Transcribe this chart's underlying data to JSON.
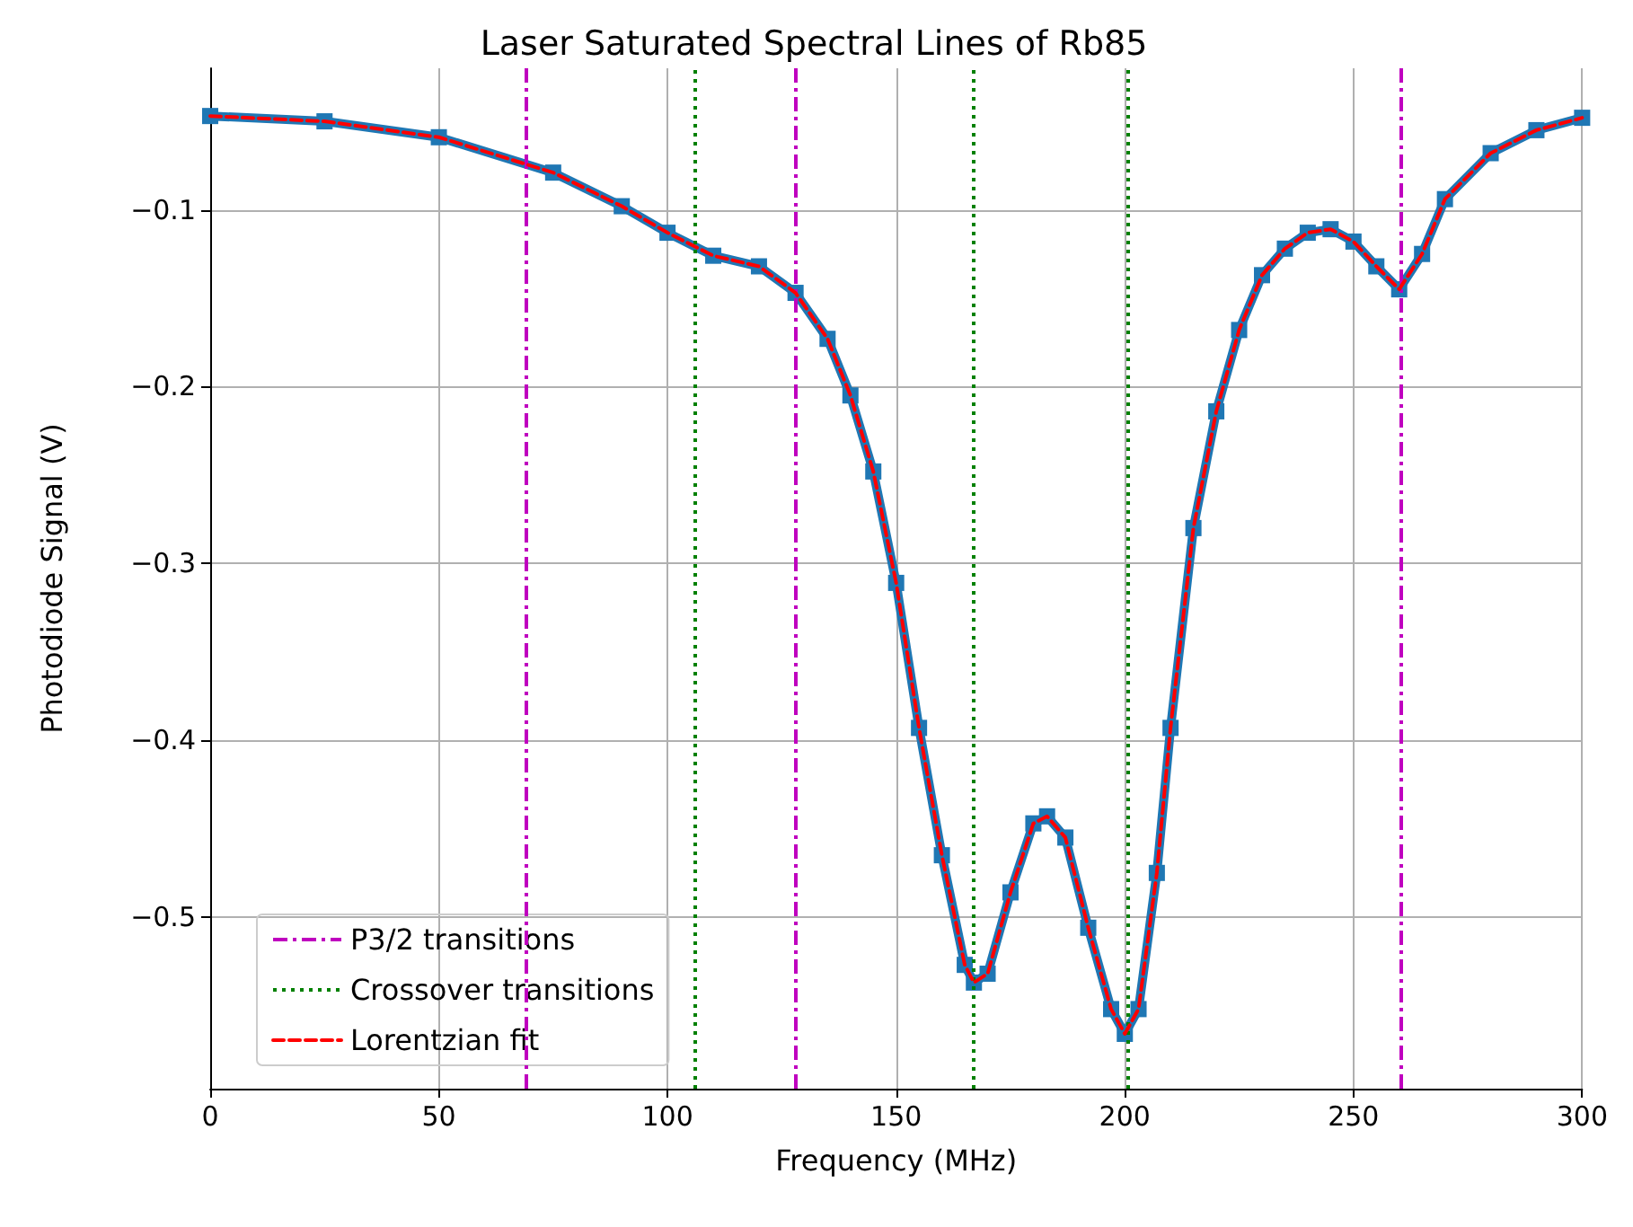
{
  "chart_data": {
    "type": "line",
    "title": "Laser Saturated Spectral Lines of Rb85",
    "xlabel": "Frequency (MHz)",
    "ylabel": "Photodiode Signal (V)",
    "xlim": [
      0,
      300
    ],
    "xticks": [
      0,
      50,
      100,
      150,
      200,
      250,
      300
    ],
    "ylim": [
      -0.597,
      -0.02
    ],
    "yticks": [
      {
        "value": -0.5,
        "label": "−0.5"
      },
      {
        "value": -0.4,
        "label": "−0.4"
      },
      {
        "value": -0.3,
        "label": "−0.3"
      },
      {
        "value": -0.2,
        "label": "−0.2"
      },
      {
        "value": -0.1,
        "label": "−0.1"
      }
    ],
    "grid": true,
    "legend": "bottom left",
    "x": [
      0,
      25,
      50,
      75,
      90,
      100,
      110,
      120,
      128,
      135,
      140,
      145,
      150,
      155,
      160,
      165,
      167,
      170,
      175,
      180,
      183,
      187,
      192,
      197,
      200,
      203,
      207,
      210,
      215,
      220,
      225,
      230,
      235,
      240,
      245,
      250,
      255,
      260,
      265,
      270,
      280,
      290,
      300
    ],
    "series": [
      {
        "color": "#1f77b4",
        "marker": "square",
        "line_style": "solid",
        "values": [
          -0.047,
          -0.05,
          -0.059,
          -0.079,
          -0.098,
          -0.113,
          -0.126,
          -0.132,
          -0.147,
          -0.173,
          -0.205,
          -0.248,
          -0.311,
          -0.393,
          -0.465,
          -0.527,
          -0.537,
          -0.532,
          -0.486,
          -0.447,
          -0.443,
          -0.455,
          -0.506,
          -0.552,
          -0.566,
          -0.552,
          -0.475,
          -0.393,
          -0.28,
          -0.214,
          -0.168,
          -0.137,
          -0.122,
          -0.113,
          -0.111,
          -0.118,
          -0.132,
          -0.145,
          -0.125,
          -0.094,
          -0.068,
          -0.055,
          -0.048
        ]
      },
      {
        "name": "Lorentzian fit",
        "color": "#ff0000",
        "marker": "none",
        "line_style": "dashed",
        "values": [
          -0.047,
          -0.05,
          -0.059,
          -0.079,
          -0.098,
          -0.113,
          -0.126,
          -0.132,
          -0.147,
          -0.173,
          -0.205,
          -0.248,
          -0.311,
          -0.393,
          -0.465,
          -0.527,
          -0.537,
          -0.532,
          -0.486,
          -0.447,
          -0.443,
          -0.455,
          -0.506,
          -0.552,
          -0.566,
          -0.552,
          -0.475,
          -0.393,
          -0.28,
          -0.214,
          -0.168,
          -0.137,
          -0.122,
          -0.113,
          -0.111,
          -0.118,
          -0.132,
          -0.145,
          -0.125,
          -0.094,
          -0.068,
          -0.055,
          -0.048
        ]
      }
    ],
    "ref_lines": [
      {
        "axis": "x",
        "value": 69,
        "label": "P3/2 transitions",
        "color": "#bf00bf",
        "line_style": "dashdot"
      },
      {
        "axis": "x",
        "value": 128,
        "color": "#bf00bf",
        "line_style": "dashdot"
      },
      {
        "axis": "x",
        "value": 260.5,
        "color": "#bf00bf",
        "line_style": "dashdot"
      },
      {
        "axis": "x",
        "value": 106,
        "label": "Crossover transitions",
        "color": "#008000",
        "line_style": "dotted"
      },
      {
        "axis": "x",
        "value": 167,
        "color": "#008000",
        "line_style": "dotted"
      },
      {
        "axis": "x",
        "value": 200.5,
        "color": "#008000",
        "line_style": "dotted"
      }
    ]
  }
}
